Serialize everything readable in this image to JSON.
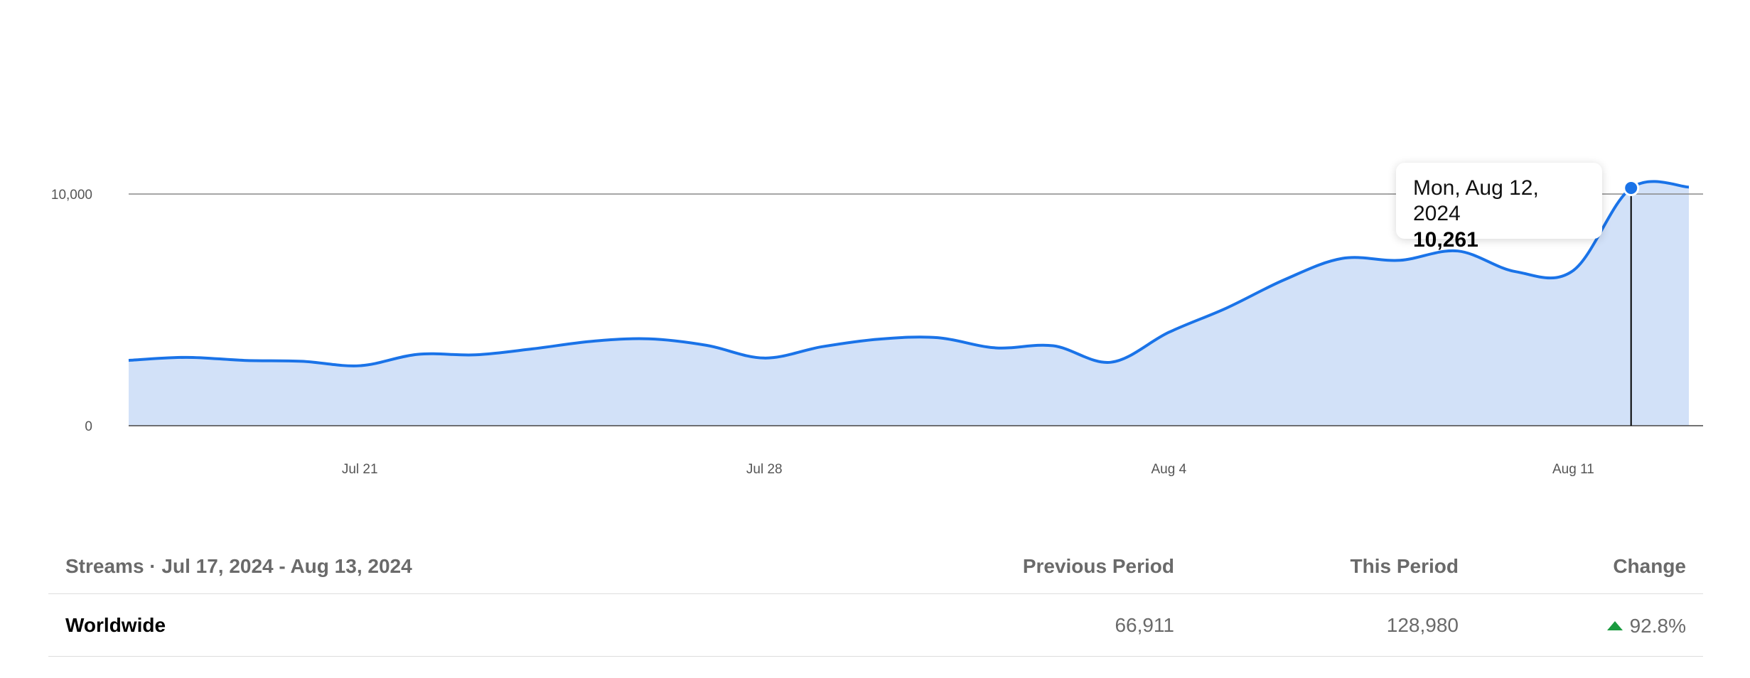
{
  "chart_data": {
    "type": "area",
    "x": [
      "2024-07-17",
      "2024-07-18",
      "2024-07-19",
      "2024-07-20",
      "2024-07-21",
      "2024-07-22",
      "2024-07-23",
      "2024-07-24",
      "2024-07-25",
      "2024-07-26",
      "2024-07-27",
      "2024-07-28",
      "2024-07-29",
      "2024-07-30",
      "2024-07-31",
      "2024-08-01",
      "2024-08-02",
      "2024-08-03",
      "2024-08-04",
      "2024-08-05",
      "2024-08-06",
      "2024-08-07",
      "2024-08-08",
      "2024-08-09",
      "2024-08-10",
      "2024-08-11",
      "2024-08-12",
      "2024-08-13"
    ],
    "values": [
      2820,
      2950,
      2820,
      2780,
      2590,
      3080,
      3060,
      3320,
      3640,
      3750,
      3470,
      2920,
      3410,
      3740,
      3800,
      3360,
      3450,
      2740,
      4030,
      5080,
      6300,
      7220,
      7140,
      7540,
      6650,
      6700,
      10261,
      10300
    ],
    "y_ticks": [
      {
        "value": 0,
        "label": "0"
      },
      {
        "value": 10000,
        "label": "10,000"
      }
    ],
    "x_ticks": [
      {
        "index": 4,
        "label": "Jul 21"
      },
      {
        "index": 11,
        "label": "Jul 28"
      },
      {
        "index": 18,
        "label": "Aug 4"
      },
      {
        "index": 25,
        "label": "Aug 11"
      }
    ],
    "ylim": [
      0,
      14000
    ],
    "line_color": "#1a73e8",
    "fill_color": "#d2e1f8",
    "highlight_index": 26,
    "tooltip": {
      "date": "Mon, Aug 12, 2024",
      "value": "10,261"
    }
  },
  "table": {
    "header": {
      "title": "Streams · Jul 17, 2024 - Aug 13, 2024",
      "previous": "Previous Period",
      "current": "This Period",
      "change": "Change"
    },
    "row": {
      "region": "Worldwide",
      "previous": "66,911",
      "current": "128,980",
      "change": "92.8%",
      "trend_color": "#1a9a3f"
    }
  }
}
